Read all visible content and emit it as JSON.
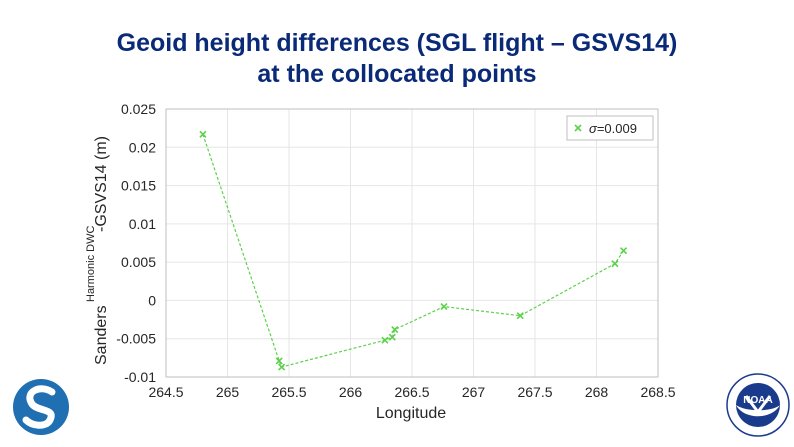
{
  "slide": {
    "title_line1": "Geoid height differences (SGL flight – GSVS14)",
    "title_line2": "at the collocated points"
  },
  "logos": {
    "left": "NGS logo",
    "right": "NOAA logo",
    "right_lettering": "NOAA"
  },
  "colors": {
    "title": "#0a2a78",
    "series": "#5bd14a",
    "ngs_blue": "#1f6fb2",
    "noaa_navy": "#1a3a8c"
  },
  "chart_data": {
    "type": "scatter",
    "x": [
      264.8,
      265.42,
      265.44,
      266.28,
      266.34,
      266.36,
      266.76,
      267.38,
      268.15,
      268.22
    ],
    "y": [
      0.0217,
      -0.0079,
      -0.0087,
      -0.0052,
      -0.0048,
      -0.0038,
      -0.0008,
      -0.002,
      0.0048,
      0.0065
    ],
    "series": [
      {
        "name": "σ=0.009",
        "label_prefix": "σ",
        "label_suffix": "=0.009",
        "marker": "x",
        "line": "dashed"
      }
    ],
    "xlabel": "Longitude",
    "ylabel_parts": [
      "Sanders",
      "Harmonic DWC",
      "-GSVS14 (m)"
    ],
    "xlim": [
      264.5,
      268.5
    ],
    "ylim": [
      -0.01,
      0.025
    ],
    "xticks": [
      "264.5",
      "265",
      "265.5",
      "266",
      "266.5",
      "267",
      "267.5",
      "268",
      "268.5"
    ],
    "xtick_values": [
      264.5,
      265,
      265.5,
      266,
      266.5,
      267,
      267.5,
      268,
      268.5
    ],
    "yticks": [
      "-0.01",
      "-0.005",
      "0",
      "0.005",
      "0.01",
      "0.015",
      "0.02",
      "0.025"
    ],
    "ytick_values": [
      -0.01,
      -0.005,
      0,
      0.005,
      0.01,
      0.015,
      0.02,
      0.025
    ],
    "grid": true,
    "legend_position": "top-right"
  }
}
